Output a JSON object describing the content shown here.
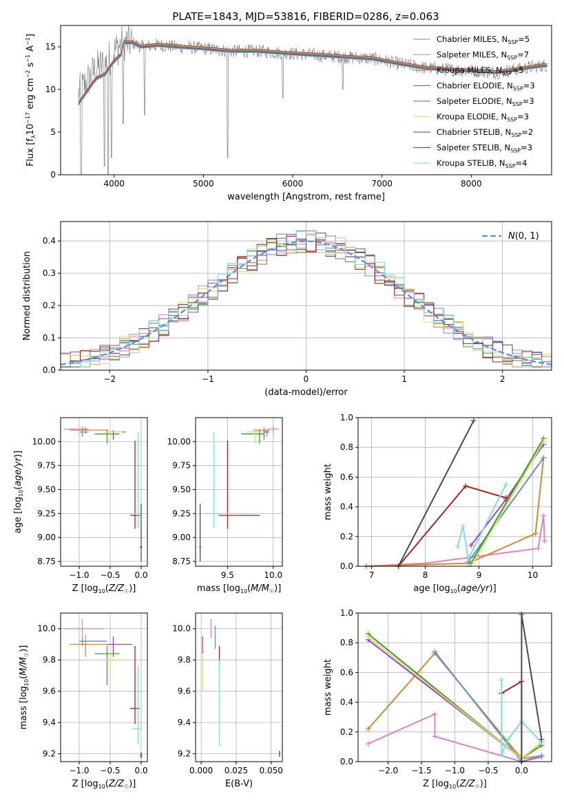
{
  "figure": {
    "title": "PLATE=1843, MJD=53816, FIBERID=0286, z=0.063"
  },
  "chart_data": [
    {
      "id": "spectrum",
      "type": "line",
      "title": "PLATE=1843, MJD=53816, FIBERID=0286, z=0.063",
      "xlabel": "wavelength [Angstrom, rest frame]",
      "ylabel": "Flux [f_λ 10^-17 erg cm^-2 s^-1 A^-1]",
      "xlim": [
        3400,
        8900
      ],
      "ylim": [
        0,
        17.5
      ],
      "xticks": [
        4000,
        5000,
        6000,
        7000,
        8000
      ],
      "yticks": [
        0,
        5,
        10,
        15
      ],
      "grid": false,
      "legend_position": "top-right",
      "data_series": {
        "name": "",
        "color": "#808080",
        "x": [
          3600,
          3700,
          3800,
          3900,
          4000,
          4100,
          4200,
          4300,
          4500,
          4700,
          5000,
          5300,
          5600,
          6000,
          6300,
          6600,
          6900,
          7200,
          7500,
          7800,
          8000,
          8300,
          8600,
          8800
        ],
        "y": [
          9.5,
          11,
          12.5,
          13,
          14.5,
          15.5,
          15.5,
          15,
          15.2,
          15,
          14.8,
          14.5,
          14.5,
          14.2,
          14,
          13.8,
          13.6,
          13,
          12.5,
          12.3,
          12.2,
          12,
          12.5,
          12.8
        ]
      },
      "series": [
        {
          "name": "Chabrier MILES, N_SSP=5",
          "label_main": "Chabrier MILES, N",
          "label_sub": "SSP",
          "label_tail": "=5",
          "color": "#5b8fd9",
          "offset": 0.0
        },
        {
          "name": "Salpeter MILES, N_SSP=7",
          "label_main": "Salpeter MILES, N",
          "label_sub": "SSP",
          "label_tail": "=7",
          "color": "#e57ec1",
          "offset": 0.1
        },
        {
          "name": "Kroupa MILES, N_SSP=5",
          "label_main": "Kroupa MILES, N",
          "label_sub": "SSP",
          "label_tail": "=5",
          "color": "#e1822f",
          "offset": -0.1
        },
        {
          "name": "Chabrier ELODIE, N_SSP=3",
          "label_main": "Chabrier ELODIE, N",
          "label_sub": "SSP",
          "label_tail": "=3",
          "color": "#3a9a3a",
          "offset": 0.05
        },
        {
          "name": "Salpeter ELODIE, N_SSP=3",
          "label_main": "Salpeter ELODIE, N",
          "label_sub": "SSP",
          "label_tail": "=3",
          "color": "#9e3fc8",
          "offset": -0.05
        },
        {
          "name": "Kroupa ELODIE, N_SSP=3",
          "label_main": "Kroupa ELODIE, N",
          "label_sub": "SSP",
          "label_tail": "=3",
          "color": "#d6e35c",
          "offset": 0.15
        },
        {
          "name": "Chabrier STELIB, N_SSP=2",
          "label_main": "Chabrier STELIB, N",
          "label_sub": "SSP",
          "label_tail": "=2",
          "color": "#4a4a4a",
          "offset": -0.15
        },
        {
          "name": "Salpeter STELIB, N_SSP=3",
          "label_main": "Salpeter STELIB, N",
          "label_sub": "SSP",
          "label_tail": "=3",
          "color": "#b41e1e",
          "offset": 0.2
        },
        {
          "name": "Kroupa STELIB, N_SSP=4",
          "label_main": "Kroupa STELIB, N",
          "label_sub": "SSP",
          "label_tail": "=4",
          "color": "#7fd9e0",
          "offset": -0.2
        }
      ]
    },
    {
      "id": "residuals",
      "type": "line",
      "xlabel": "(data-model)/error",
      "ylabel": "Normed distribution",
      "xlim": [
        -2.5,
        2.5
      ],
      "ylim": [
        0,
        0.46
      ],
      "xticks": [
        -2,
        -1,
        0,
        1,
        2
      ],
      "yticks": [
        0.0,
        0.1,
        0.2,
        0.3,
        0.4
      ],
      "grid": true,
      "legend_position": "top-right",
      "reference": {
        "name": "N(0,1)",
        "color": "#5b8fd9",
        "style": "dashed",
        "mu": 0,
        "sigma": 1
      }
    },
    {
      "id": "age-vs-Z",
      "type": "scatter",
      "xlabel": "Z [log10(Z/Z☉)]",
      "ylabel": "age  [log10(age/yr)]",
      "xlim": [
        -1.3,
        0.1
      ],
      "ylim": [
        8.7,
        10.25
      ],
      "xticks": [
        -1.0,
        -0.5,
        0.0
      ],
      "yticks": [
        8.75,
        9.0,
        9.25,
        9.5,
        9.75,
        10.0
      ],
      "grid": true,
      "points": [
        {
          "x": -0.95,
          "y": 10.13,
          "xerr": [
            0.3,
            0.1
          ],
          "yerr": [
            0.05,
            0.03
          ],
          "color": "#e57ec1"
        },
        {
          "x": -0.9,
          "y": 10.12,
          "xerr": [
            0.25,
            0.35
          ],
          "yerr": [
            0.04,
            0.03
          ],
          "color": "#e1822f"
        },
        {
          "x": -0.95,
          "y": 10.1,
          "xerr": [
            0.05,
            0.1
          ],
          "yerr": [
            0.05,
            0.03
          ],
          "color": "#5b8fd9"
        },
        {
          "x": -0.45,
          "y": 10.1,
          "xerr": [
            0.1,
            0.2
          ],
          "yerr": [
            0.08,
            0.02
          ],
          "color": "#9e3fc8"
        },
        {
          "x": -0.55,
          "y": 10.08,
          "xerr": [
            0.2,
            0.2
          ],
          "yerr": [
            0.1,
            0.05
          ],
          "color": "#3a9a3a"
        },
        {
          "x": -0.5,
          "y": 10.1,
          "xerr": [
            0.1,
            0.2
          ],
          "yerr": [
            0.12,
            0.02
          ],
          "color": "#d6e35c"
        },
        {
          "x": -0.1,
          "y": 9.23,
          "xerr": [
            0.08,
            0.08
          ],
          "yerr": [
            0.14,
            0.78
          ],
          "color": "#b41e1e"
        },
        {
          "x": -0.05,
          "y": 9.25,
          "xerr": [
            0.1,
            0.05
          ],
          "yerr": [
            0.15,
            0.85
          ],
          "color": "#7fd9e0"
        },
        {
          "x": 0.0,
          "y": 8.9,
          "xerr": [
            0.02,
            0.02
          ],
          "yerr": [
            0.15,
            0.45
          ],
          "color": "#4a4a4a"
        }
      ]
    },
    {
      "id": "age-vs-mass",
      "type": "scatter",
      "xlabel": "mass [log10(M/M☉)]",
      "ylabel": "",
      "xlim": [
        9.15,
        10.1
      ],
      "ylim": [
        8.7,
        10.25
      ],
      "xticks": [
        9.5,
        10.0
      ],
      "yticks": [
        8.75,
        9.0,
        9.25,
        9.5,
        9.75,
        10.0
      ],
      "grid": true,
      "points": [
        {
          "x": 10.0,
          "y": 10.13,
          "xerr": [
            0.06,
            0.06
          ],
          "yerr": [
            0.05,
            0.03
          ],
          "color": "#e57ec1"
        },
        {
          "x": 9.9,
          "y": 10.12,
          "xerr": [
            0.12,
            0.06
          ],
          "yerr": [
            0.04,
            0.03
          ],
          "color": "#e1822f"
        },
        {
          "x": 9.93,
          "y": 10.1,
          "xerr": [
            0.03,
            0.03
          ],
          "yerr": [
            0.05,
            0.03
          ],
          "color": "#5b8fd9"
        },
        {
          "x": 9.9,
          "y": 10.1,
          "xerr": [
            0.1,
            0.05
          ],
          "yerr": [
            0.08,
            0.02
          ],
          "color": "#9e3fc8"
        },
        {
          "x": 9.85,
          "y": 10.08,
          "xerr": [
            0.2,
            0.05
          ],
          "yerr": [
            0.1,
            0.05
          ],
          "color": "#3a9a3a"
        },
        {
          "x": 9.8,
          "y": 10.1,
          "xerr": [
            0.1,
            0.1
          ],
          "yerr": [
            0.12,
            0.02
          ],
          "color": "#d6e35c"
        },
        {
          "x": 9.5,
          "y": 9.23,
          "xerr": [
            0.1,
            0.35
          ],
          "yerr": [
            0.14,
            0.78
          ],
          "color": "#b41e1e"
        },
        {
          "x": 9.35,
          "y": 9.25,
          "xerr": [
            0.1,
            0.4
          ],
          "yerr": [
            0.15,
            0.85
          ],
          "color": "#7fd9e0"
        },
        {
          "x": 9.2,
          "y": 8.9,
          "xerr": [
            0.01,
            0.01
          ],
          "yerr": [
            0.15,
            0.45
          ],
          "color": "#4a4a4a"
        }
      ]
    },
    {
      "id": "weight-vs-age",
      "type": "line",
      "xlabel": "age  [log10(age/yr)]",
      "ylabel": "mass weight",
      "xlim": [
        6.75,
        10.35
      ],
      "ylim": [
        0,
        1
      ],
      "xticks": [
        7,
        8,
        9,
        10
      ],
      "yticks": [
        0.0,
        0.2,
        0.4,
        0.6,
        0.8,
        1.0
      ],
      "grid": true,
      "series": [
        {
          "color": "#e57ec1",
          "x": [
            6.9,
            8.0,
            10.1,
            10.2,
            10.22
          ],
          "y": [
            0.0,
            0.02,
            0.12,
            0.34,
            0.17
          ]
        },
        {
          "color": "#e1822f",
          "x": [
            6.9,
            8.8,
            10.05,
            10.2
          ],
          "y": [
            0.0,
            0.02,
            0.22,
            0.73
          ]
        },
        {
          "color": "#5b8fd9",
          "x": [
            8.8,
            10.2
          ],
          "y": [
            0.03,
            0.73
          ]
        },
        {
          "color": "#9e3fc8",
          "x": [
            8.85,
            9.5,
            10.2
          ],
          "y": [
            0.14,
            0.45,
            0.82
          ]
        },
        {
          "color": "#3a9a3a",
          "x": [
            8.85,
            10.2
          ],
          "y": [
            0.02,
            0.86
          ]
        },
        {
          "color": "#d6e35c",
          "x": [
            8.9,
            10.2
          ],
          "y": [
            0.03,
            0.84
          ]
        },
        {
          "color": "#b41e1e",
          "x": [
            7.5,
            8.75,
            9.5
          ],
          "y": [
            0.0,
            0.54,
            0.46
          ]
        },
        {
          "color": "#7fd9e0",
          "x": [
            8.6,
            8.7,
            8.8,
            9.5
          ],
          "y": [
            0.13,
            0.27,
            0.05,
            0.55
          ]
        },
        {
          "color": "#4a4a4a",
          "x": [
            7.5,
            8.9
          ],
          "y": [
            0.0,
            0.98
          ]
        }
      ]
    },
    {
      "id": "mass-vs-Z",
      "type": "scatter",
      "xlabel": "Z [log10(Z/Z☉)]",
      "ylabel": "mass [log10(M/M☉)]",
      "xlim": [
        -1.3,
        0.1
      ],
      "ylim": [
        9.15,
        10.1
      ],
      "xticks": [
        -1.0,
        -0.5,
        0.0
      ],
      "yticks": [
        9.2,
        9.4,
        9.6,
        9.8,
        10.0
      ],
      "grid": true,
      "points": [
        {
          "x": -0.95,
          "y": 10.0,
          "xerr": [
            0.3,
            0.35
          ],
          "yerr": [
            0.06,
            0.06
          ],
          "color": "#e57ec1"
        },
        {
          "x": -0.9,
          "y": 9.9,
          "xerr": [
            0.25,
            0.35
          ],
          "yerr": [
            0.08,
            0.06
          ],
          "color": "#e1822f"
        },
        {
          "x": -0.95,
          "y": 9.92,
          "xerr": [
            0.05,
            0.4
          ],
          "yerr": [
            0.03,
            0.03
          ],
          "color": "#5b8fd9"
        },
        {
          "x": -0.45,
          "y": 9.9,
          "xerr": [
            0.1,
            0.3
          ],
          "yerr": [
            0.08,
            0.05
          ],
          "color": "#9e3fc8"
        },
        {
          "x": -0.55,
          "y": 9.84,
          "xerr": [
            0.2,
            0.2
          ],
          "yerr": [
            0.2,
            0.05
          ],
          "color": "#3a9a3a"
        },
        {
          "x": -0.5,
          "y": 9.8,
          "xerr": [
            0.1,
            0.2
          ],
          "yerr": [
            0.12,
            0.05
          ],
          "color": "#d6e35c"
        },
        {
          "x": -0.1,
          "y": 9.49,
          "xerr": [
            0.08,
            0.08
          ],
          "yerr": [
            0.1,
            0.4
          ],
          "color": "#b41e1e"
        },
        {
          "x": -0.05,
          "y": 9.36,
          "xerr": [
            0.1,
            0.05
          ],
          "yerr": [
            0.1,
            0.4
          ],
          "color": "#7fd9e0"
        },
        {
          "x": 0.0,
          "y": 9.19,
          "xerr": [
            0.02,
            0.02
          ],
          "yerr": [
            0.02,
            0.02
          ],
          "color": "#4a4a4a"
        }
      ]
    },
    {
      "id": "mass-vs-ebv",
      "type": "scatter",
      "xlabel": "E(B-V)",
      "ylabel": "",
      "xlim": [
        -0.004,
        0.058
      ],
      "ylim": [
        9.15,
        10.1
      ],
      "xticks": [
        0.0,
        0.025,
        0.05
      ],
      "yticks": [
        9.2,
        9.4,
        9.6,
        9.8,
        10.0
      ],
      "grid": true,
      "points": [
        {
          "x": 0.007,
          "y": 10.0,
          "xerr": [
            0,
            0
          ],
          "yerr": [
            0.06,
            0.06
          ],
          "color": "#e57ec1"
        },
        {
          "x": 0.01,
          "y": 9.92,
          "xerr": [
            0,
            0
          ],
          "yerr": [
            0.05,
            0.1
          ],
          "color": "#5b8fd9"
        },
        {
          "x": 0.001,
          "y": 9.9,
          "xerr": [
            0,
            0
          ],
          "yerr": [
            0.06,
            0.05
          ],
          "color": "#9e3fc8"
        },
        {
          "x": 0.013,
          "y": 9.84,
          "xerr": [
            0,
            0
          ],
          "yerr": [
            0.08,
            0.05
          ],
          "color": "#b41e1e"
        },
        {
          "x": 0.001,
          "y": 9.78,
          "xerr": [
            0,
            0
          ],
          "yerr": [
            0.18,
            0.05
          ],
          "color": "#d6e35c"
        },
        {
          "x": 0.013,
          "y": 9.5,
          "xerr": [
            0,
            0
          ],
          "yerr": [
            0.25,
            0.3
          ],
          "color": "#7fd9e0"
        },
        {
          "x": 0.056,
          "y": 9.2,
          "xerr": [
            0,
            0
          ],
          "yerr": [
            0.02,
            0.02
          ],
          "color": "#4a4a4a"
        }
      ]
    },
    {
      "id": "weight-vs-Z",
      "type": "line",
      "xlabel": "Z [log10(Z/Z☉)]",
      "ylabel": "mass weight",
      "xlim": [
        -2.45,
        0.45
      ],
      "ylim": [
        0,
        1
      ],
      "xticks": [
        -2.0,
        -1.5,
        -1.0,
        -0.5,
        0.0
      ],
      "yticks": [
        0.0,
        0.2,
        0.4,
        0.6,
        0.8,
        1.0
      ],
      "grid": true,
      "series": [
        {
          "color": "#e57ec1",
          "x": [
            -2.3,
            -1.3,
            -1.3,
            0.0,
            0.3
          ],
          "y": [
            0.12,
            0.32,
            0.17,
            0.0,
            0.03
          ]
        },
        {
          "color": "#e1822f",
          "x": [
            -2.3,
            -1.3,
            0.0,
            0.3
          ],
          "y": [
            0.22,
            0.73,
            0.02,
            0.04
          ]
        },
        {
          "color": "#5b8fd9",
          "x": [
            -1.3,
            0.0,
            0.3
          ],
          "y": [
            0.74,
            0.0,
            0.04
          ]
        },
        {
          "color": "#9e3fc8",
          "x": [
            -2.3,
            0.0,
            0.3
          ],
          "y": [
            0.82,
            0.02,
            0.13
          ]
        },
        {
          "color": "#3a9a3a",
          "x": [
            -2.3,
            0.0,
            0.3
          ],
          "y": [
            0.86,
            0.02,
            0.11
          ]
        },
        {
          "color": "#d6e35c",
          "x": [
            -2.3,
            0.0,
            0.3
          ],
          "y": [
            0.84,
            0.02,
            0.13
          ]
        },
        {
          "color": "#b41e1e",
          "x": [
            -0.3,
            0.0,
            0.0
          ],
          "y": [
            0.46,
            0.54,
            0.0
          ]
        },
        {
          "color": "#7fd9e0",
          "x": [
            -0.3,
            -0.3,
            -0.2,
            0.0,
            0.3
          ],
          "y": [
            0.55,
            0.05,
            0.15,
            0.27,
            0.13
          ]
        },
        {
          "color": "#4a4a4a",
          "x": [
            0.0,
            0.0,
            0.3
          ],
          "y": [
            0.0,
            0.99,
            0.15
          ]
        }
      ]
    }
  ]
}
